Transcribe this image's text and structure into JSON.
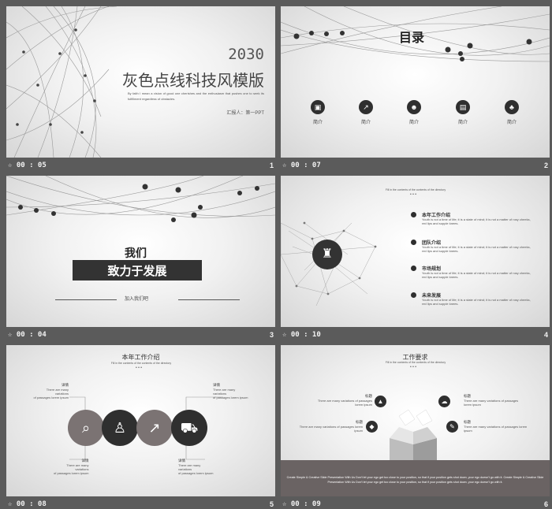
{
  "slides": [
    {
      "number": "1",
      "time": "00 : 05",
      "year": "2030",
      "title": "灰色点线科技风模版",
      "body": "By faith I mean a vision of good one cherishes  and the enthusiasm that pushes one to seek its fulfillment  regardless  of obstacles.",
      "reporter": "汇报人：第一PPT"
    },
    {
      "number": "2",
      "time": "00 : 07",
      "title": "目录",
      "items": [
        {
          "icon": "briefcase-icon",
          "glyph": "▣",
          "label": "简介"
        },
        {
          "icon": "chart-icon",
          "glyph": "↗",
          "label": "简介"
        },
        {
          "icon": "people-icon",
          "glyph": "☻",
          "label": "简介"
        },
        {
          "icon": "document-icon",
          "glyph": "▤",
          "label": "简介"
        },
        {
          "icon": "hierarchy-icon",
          "glyph": "♣",
          "label": "简介"
        }
      ]
    },
    {
      "number": "3",
      "time": "00 : 04",
      "line1": "我们",
      "line2": "致力于发展",
      "join": "加入我们吧"
    },
    {
      "number": "4",
      "time": "00 : 10",
      "header": "Fill in the contents of the contents of the directory",
      "items": [
        {
          "title": "本年工作介绍",
          "text": "Youth is not a time of life; it is a state of mind; it is not a matter of rosy cheeks, red lips and supple knees."
        },
        {
          "title": "团队介绍",
          "text": "Youth is not a time of life; it is a state of mind; it is not a matter of rosy cheeks, red lips and supple knees."
        },
        {
          "title": "市场规划",
          "text": "Youth is not a time of life; it is a state of mind; it is not a matter of rosy cheeks, red lips and supple knees."
        },
        {
          "title": "未来发展",
          "text": "Youth is not a time of life; it is a state of mind; it is not a matter of rosy cheeks, red lips and supple knees."
        }
      ]
    },
    {
      "number": "5",
      "time": "00 : 08",
      "title": "本年工作介绍",
      "header": "Fill in the contents of the contents of the directory",
      "labels": [
        {
          "title": "详情",
          "text1": "There are many",
          "text2": "variations",
          "text3": "of passages  lorem  ipsum"
        },
        {
          "title": "详情",
          "text1": "There are many",
          "text2": "variations",
          "text3": "of passages  lorem  ipsum"
        },
        {
          "title": "详情",
          "text1": "There are many",
          "text2": "variations",
          "text3": "of passages  lorem  ipsum"
        },
        {
          "title": "详情",
          "text1": "There are many",
          "text2": "variations",
          "text3": "of passages  lorem  ipsum"
        }
      ]
    },
    {
      "number": "6",
      "time": "00 : 09",
      "title": "工作要求",
      "header": "Fill in the contents of the contents of the directory",
      "item_title": "标题",
      "item_text": "There are many  variations  of passages  lorem  ipsum",
      "footer": "Create Simple & Creative Slide Presentation With Us Don't  let your ego get too close to your position,  so that if your position  gets shot down,  your ego doesn't go with it. Create Simple & Creative Slide Presentation With Us Don't  let your ego  get too close to your position,  so that if your position  gets shot down,  your ego doesn't  go with it."
    }
  ]
}
